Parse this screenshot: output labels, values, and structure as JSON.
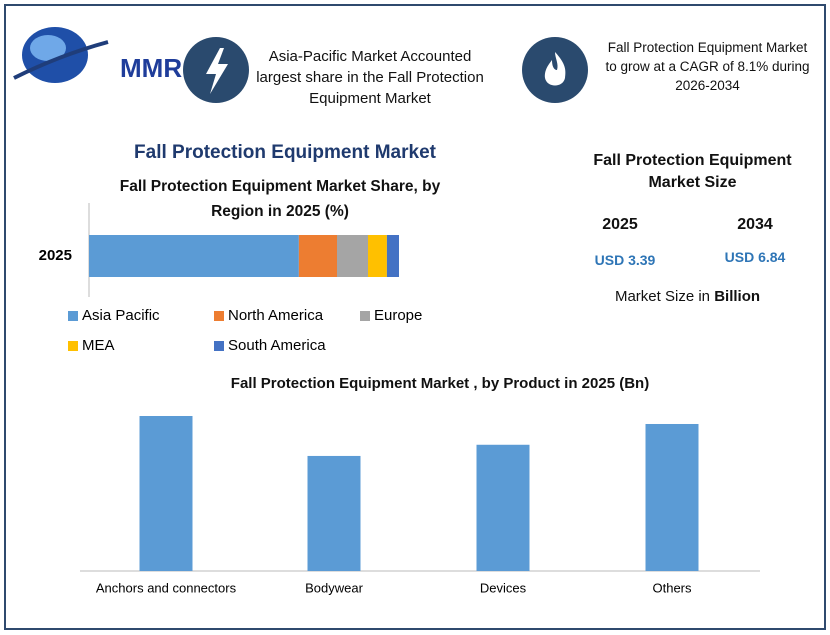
{
  "header": {
    "logo": "MMR",
    "note_1": "Asia-Pacific Market Accounted largest share in the Fall Protection Equipment Market",
    "note_2": "Fall Protection Equipment Market to grow at a CAGR of 8.1% during 2026-2034"
  },
  "title": "Fall Protection Equipment Market",
  "market_size": {
    "title": "Fall Protection Equipment Market Size",
    "years": [
      "2025",
      "2034"
    ],
    "amounts": [
      "USD 3.39",
      "USD 6.84"
    ],
    "note": "Market Size in",
    "unit": "Billion"
  },
  "chart_data": [
    {
      "type": "stacked_bar",
      "title": "Fall Protection Equipment Market Share, by Region in 2025 (%)",
      "categories": [
        "2025"
      ],
      "series": [
        {
          "name": "Asia Pacific",
          "color": "#5b9bd5",
          "values": [
            67.7
          ]
        },
        {
          "name": "North America",
          "color": "#ed7d31",
          "values": [
            12.3
          ]
        },
        {
          "name": "Europe",
          "color": "#a5a5a5",
          "values": [
            10
          ]
        },
        {
          "name": "MEA",
          "color": "#ffc000",
          "values": [
            6.1
          ]
        },
        {
          "name": "South America",
          "color": "#4472c4",
          "values": [
            3.9
          ]
        }
      ]
    },
    {
      "type": "bar",
      "title": "Fall Protection Equipment Market , by Product in 2025 (Bn)",
      "categories": [
        "Anchors and connectors",
        "Bodywear",
        "Devices",
        "Others"
      ],
      "values": [
        0.97,
        0.72,
        0.79,
        0.92
      ],
      "color": "#5b9bd5"
    }
  ]
}
